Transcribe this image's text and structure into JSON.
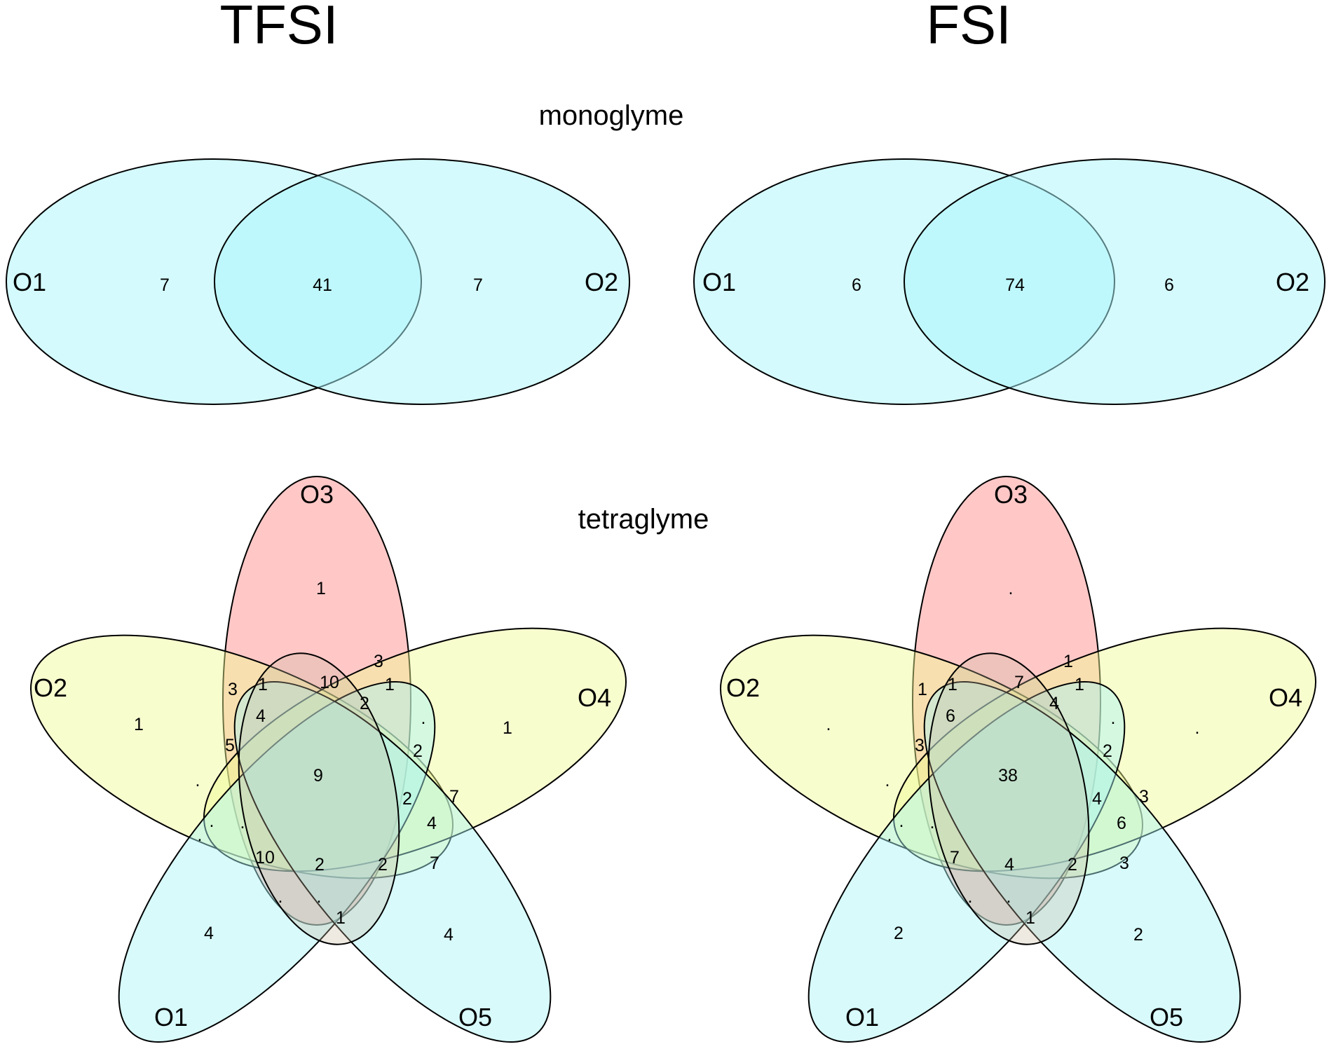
{
  "columns": [
    {
      "title": "TFSI"
    },
    {
      "title": "FSI"
    }
  ],
  "rows": [
    {
      "title": "monoglyme"
    },
    {
      "title": "tetraglyme"
    }
  ],
  "colors": {
    "two_set_fill": "#aaf6fb",
    "O1": "#a9f3f7",
    "O2": "#f0fb92",
    "O3": "#ff9a99",
    "O4": "#f0fb92",
    "O5": "#a9f3f7",
    "inner": "#c7bb9f",
    "stroke": "#000000"
  },
  "venn2": {
    "set_labels": [
      "O1",
      "O2"
    ],
    "TFSI": {
      "only_O1": "7",
      "both": "41",
      "only_O2": "7"
    },
    "FSI": {
      "only_O1": "6",
      "both": "74",
      "only_O2": "6"
    }
  },
  "venn5": {
    "set_labels": [
      "O1",
      "O2",
      "O3",
      "O4",
      "O5"
    ],
    "TFSI": [
      {
        "region": "O3 only",
        "value": "1"
      },
      {
        "region": "O2 only",
        "value": "1"
      },
      {
        "region": "O4 only",
        "value": "1"
      },
      {
        "region": "O1 only",
        "value": "4"
      },
      {
        "region": "O5 only",
        "value": "4"
      },
      {
        "region": "O2∩O3",
        "value": "3"
      },
      {
        "region": "O3∩O4",
        "value": "3"
      },
      {
        "region": "O1∩O2∩O3∩O4∩O5",
        "value": "9"
      },
      {
        "region": "r1",
        "value": "1"
      },
      {
        "region": "r2",
        "value": "10"
      },
      {
        "region": "r3",
        "value": "1"
      },
      {
        "region": "r4",
        "value": "4"
      },
      {
        "region": "r5",
        "value": "2"
      },
      {
        "region": "r6",
        "value": "."
      },
      {
        "region": "r7",
        "value": "5"
      },
      {
        "region": "r8",
        "value": "2"
      },
      {
        "region": "r9",
        "value": "."
      },
      {
        "region": "r10",
        "value": "7"
      },
      {
        "region": "r11",
        "value": "2"
      },
      {
        "region": "r12",
        "value": "."
      },
      {
        "region": "r13",
        "value": "4"
      },
      {
        "region": "r14",
        "value": "."
      },
      {
        "region": "r15",
        "value": "7"
      },
      {
        "region": "r16",
        "value": "."
      },
      {
        "region": "r17",
        "value": "10"
      },
      {
        "region": "r18",
        "value": "2"
      },
      {
        "region": "r19",
        "value": "2"
      },
      {
        "region": "r20",
        "value": "."
      },
      {
        "region": "r21",
        "value": "."
      },
      {
        "region": "r22",
        "value": "1"
      }
    ],
    "FSI": [
      {
        "region": "O3 only",
        "value": "."
      },
      {
        "region": "O2 only",
        "value": "."
      },
      {
        "region": "O4 only",
        "value": "."
      },
      {
        "region": "O1 only",
        "value": "2"
      },
      {
        "region": "O5 only",
        "value": "2"
      },
      {
        "region": "O2∩O3",
        "value": "1"
      },
      {
        "region": "O3∩O4",
        "value": "1"
      },
      {
        "region": "O1∩O2∩O3∩O4∩O5",
        "value": "38"
      },
      {
        "region": "r1",
        "value": "1"
      },
      {
        "region": "r2",
        "value": "7"
      },
      {
        "region": "r3",
        "value": "1"
      },
      {
        "region": "r4",
        "value": "6"
      },
      {
        "region": "r5",
        "value": "4"
      },
      {
        "region": "r6",
        "value": "."
      },
      {
        "region": "r7",
        "value": "3"
      },
      {
        "region": "r8",
        "value": "2"
      },
      {
        "region": "r9",
        "value": "."
      },
      {
        "region": "r10",
        "value": "3"
      },
      {
        "region": "r11",
        "value": "4"
      },
      {
        "region": "r12",
        "value": "."
      },
      {
        "region": "r13",
        "value": "6"
      },
      {
        "region": "r14",
        "value": "."
      },
      {
        "region": "r15",
        "value": "3"
      },
      {
        "region": "r16",
        "value": "."
      },
      {
        "region": "r17",
        "value": "7"
      },
      {
        "region": "r18",
        "value": "4"
      },
      {
        "region": "r19",
        "value": "2"
      },
      {
        "region": "r20",
        "value": "."
      },
      {
        "region": "r21",
        "value": "."
      },
      {
        "region": "r22",
        "value": "1"
      }
    ]
  }
}
